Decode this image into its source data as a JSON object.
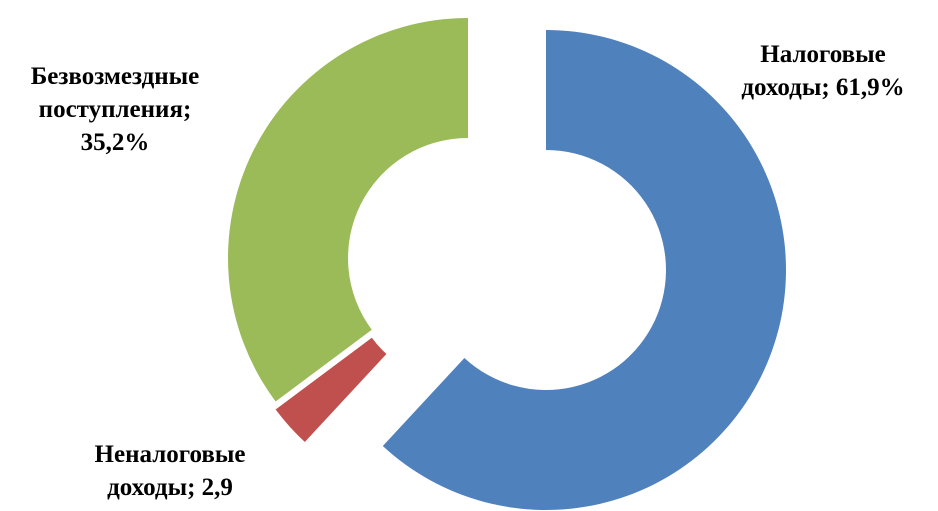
{
  "chart_data": {
    "type": "pie",
    "variant": "donut, exploded",
    "categories": [
      "Налоговые доходы",
      "Неналоговые доходы",
      "Безвозмездные поступления"
    ],
    "values": [
      61.9,
      2.9,
      35.2
    ],
    "unit": "%",
    "colors": [
      "#4F81BD",
      "#C0504D",
      "#9BBB59"
    ],
    "labels": [
      {
        "line1": "Налоговые",
        "line2": "доходы; 61,9%",
        "line3": ""
      },
      {
        "line1": "Неналоговые",
        "line2": "доходы; 2,9",
        "line3": ""
      },
      {
        "line1": "Безвозмездные",
        "line2": "поступления;",
        "line3": "35,2%"
      }
    ],
    "legend": "none"
  }
}
